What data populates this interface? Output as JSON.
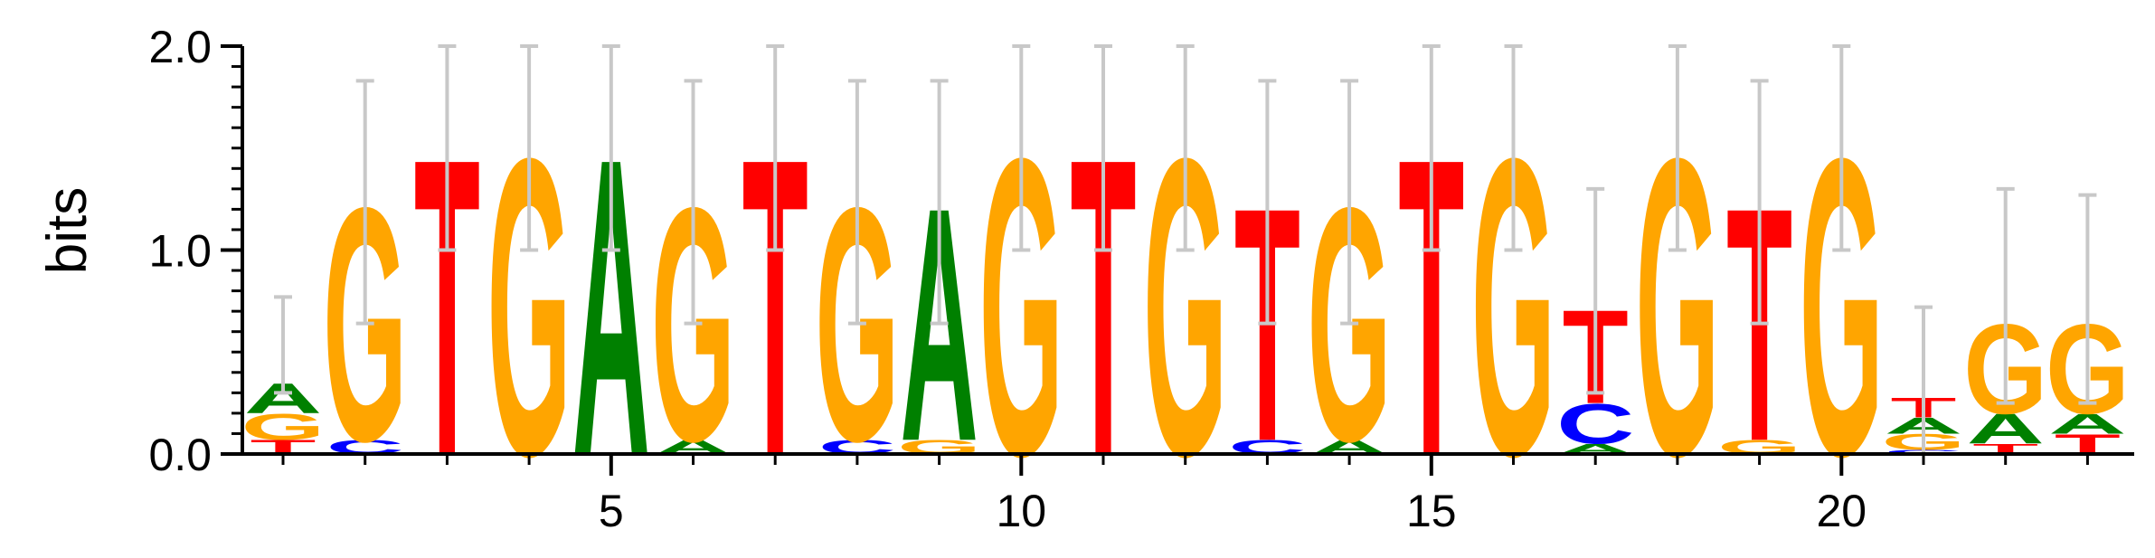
{
  "chart_data": {
    "type": "sequence_logo",
    "ylabel": "bits",
    "ylim": [
      0,
      2.0
    ],
    "y_ticks": [
      {
        "value": 0.0,
        "label": "0.0"
      },
      {
        "value": 1.0,
        "label": "1.0"
      },
      {
        "value": 2.0,
        "label": "2.0"
      }
    ],
    "y_minor_step": 0.1,
    "x_ticks": [
      {
        "value": 5,
        "label": "5"
      },
      {
        "value": 10,
        "label": "10"
      },
      {
        "value": 15,
        "label": "15"
      },
      {
        "value": 20,
        "label": "20"
      }
    ],
    "colors": {
      "A": "#008000",
      "C": "#0000ff",
      "G": "#ffa500",
      "T": "#ff0000",
      "error_bar": "#c8c8c8"
    },
    "positions": [
      {
        "pos": 1,
        "stack": [
          {
            "l": "T",
            "h": 0.07
          },
          {
            "l": "G",
            "h": 0.13
          },
          {
            "l": "A",
            "h": 0.15
          }
        ],
        "err": [
          0.3,
          0.77
        ]
      },
      {
        "pos": 2,
        "stack": [
          {
            "l": "C",
            "h": 0.07
          },
          {
            "l": "G",
            "h": 1.17
          }
        ],
        "err": [
          0.64,
          1.83
        ]
      },
      {
        "pos": 3,
        "stack": [
          {
            "l": "T",
            "h": 1.49
          }
        ],
        "err": [
          1.0,
          2.0
        ]
      },
      {
        "pos": 4,
        "stack": [
          {
            "l": "G",
            "h": 1.49
          }
        ],
        "err": [
          1.0,
          2.0
        ]
      },
      {
        "pos": 5,
        "stack": [
          {
            "l": "A",
            "h": 1.49
          }
        ],
        "err": [
          1.0,
          2.0
        ]
      },
      {
        "pos": 6,
        "stack": [
          {
            "l": "A",
            "h": 0.07
          },
          {
            "l": "G",
            "h": 1.17
          }
        ],
        "err": [
          0.64,
          1.83
        ]
      },
      {
        "pos": 7,
        "stack": [
          {
            "l": "T",
            "h": 1.49
          }
        ],
        "err": [
          1.0,
          2.0
        ]
      },
      {
        "pos": 8,
        "stack": [
          {
            "l": "C",
            "h": 0.07
          },
          {
            "l": "G",
            "h": 1.17
          }
        ],
        "err": [
          0.64,
          1.83
        ]
      },
      {
        "pos": 9,
        "stack": [
          {
            "l": "G",
            "h": 0.07
          },
          {
            "l": "A",
            "h": 1.17
          }
        ],
        "err": [
          0.64,
          1.83
        ]
      },
      {
        "pos": 10,
        "stack": [
          {
            "l": "G",
            "h": 1.49
          }
        ],
        "err": [
          1.0,
          2.0
        ]
      },
      {
        "pos": 11,
        "stack": [
          {
            "l": "T",
            "h": 1.49
          }
        ],
        "err": [
          1.0,
          2.0
        ]
      },
      {
        "pos": 12,
        "stack": [
          {
            "l": "G",
            "h": 1.49
          }
        ],
        "err": [
          1.0,
          2.0
        ]
      },
      {
        "pos": 13,
        "stack": [
          {
            "l": "C",
            "h": 0.07
          },
          {
            "l": "T",
            "h": 1.17
          }
        ],
        "err": [
          0.64,
          1.83
        ]
      },
      {
        "pos": 14,
        "stack": [
          {
            "l": "A",
            "h": 0.07
          },
          {
            "l": "G",
            "h": 1.17
          }
        ],
        "err": [
          0.64,
          1.83
        ]
      },
      {
        "pos": 15,
        "stack": [
          {
            "l": "T",
            "h": 1.49
          }
        ],
        "err": [
          1.0,
          2.0
        ]
      },
      {
        "pos": 16,
        "stack": [
          {
            "l": "G",
            "h": 1.49
          }
        ],
        "err": [
          1.0,
          2.0
        ]
      },
      {
        "pos": 17,
        "stack": [
          {
            "l": "A",
            "h": 0.05
          },
          {
            "l": "C",
            "h": 0.2
          },
          {
            "l": "T",
            "h": 0.47
          }
        ],
        "err": [
          0.3,
          1.3
        ]
      },
      {
        "pos": 18,
        "stack": [
          {
            "l": "G",
            "h": 1.49
          }
        ],
        "err": [
          1.0,
          2.0
        ]
      },
      {
        "pos": 19,
        "stack": [
          {
            "l": "G",
            "h": 0.07
          },
          {
            "l": "T",
            "h": 1.17
          }
        ],
        "err": [
          0.64,
          1.83
        ]
      },
      {
        "pos": 20,
        "stack": [
          {
            "l": "G",
            "h": 1.49
          }
        ],
        "err": [
          1.0,
          2.0
        ]
      },
      {
        "pos": 21,
        "stack": [
          {
            "l": "C",
            "h": 0.02
          },
          {
            "l": "G",
            "h": 0.08
          },
          {
            "l": "A",
            "h": 0.08
          },
          {
            "l": "T",
            "h": 0.1
          }
        ],
        "err": [
          0.0,
          0.72
        ]
      },
      {
        "pos": 22,
        "stack": [
          {
            "l": "T",
            "h": 0.05
          },
          {
            "l": "A",
            "h": 0.15
          },
          {
            "l": "G",
            "h": 0.45
          }
        ],
        "err": [
          0.25,
          1.3
        ]
      },
      {
        "pos": 23,
        "stack": [
          {
            "l": "T",
            "h": 0.1
          },
          {
            "l": "A",
            "h": 0.1
          },
          {
            "l": "G",
            "h": 0.45
          }
        ],
        "err": [
          0.25,
          1.27
        ]
      }
    ]
  }
}
